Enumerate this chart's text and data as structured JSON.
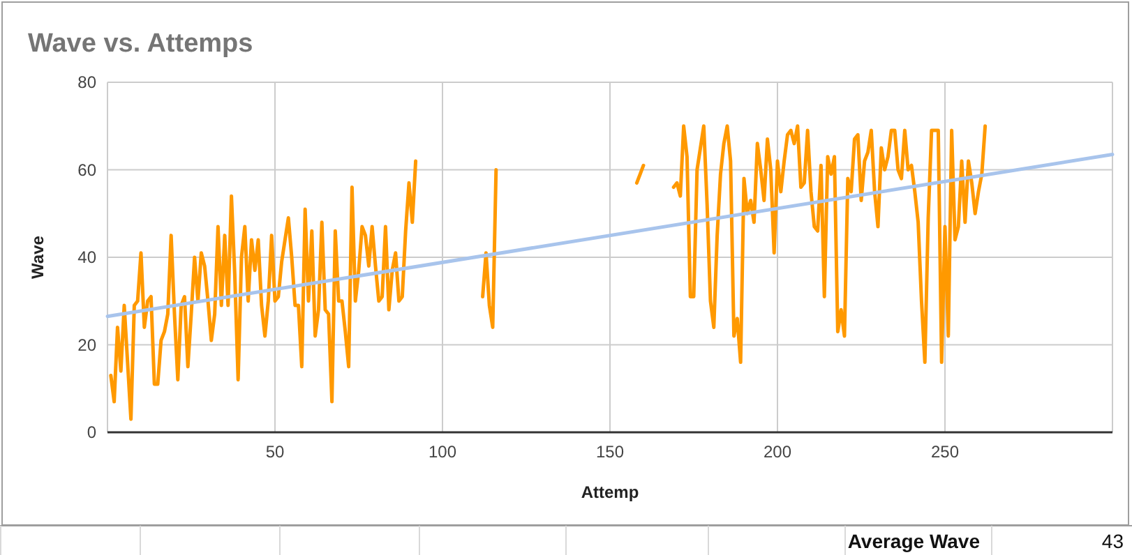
{
  "chart_data": {
    "type": "line",
    "title": "Wave vs. Attemps",
    "xlabel": "Attemp",
    "ylabel": "Wave",
    "xlim": [
      0,
      300
    ],
    "xticks": [
      50,
      100,
      150,
      200,
      250
    ],
    "ylim": [
      0,
      80
    ],
    "yticks": [
      0,
      20,
      40,
      60,
      80
    ],
    "grid": true,
    "series": [
      {
        "color": "#ff9900",
        "x": [
          1,
          2,
          3,
          4,
          5,
          6,
          7,
          8,
          9,
          10,
          11,
          12,
          13,
          14,
          15,
          16,
          17,
          18,
          19,
          20,
          21,
          22,
          23,
          24,
          25,
          26,
          27,
          28,
          29,
          30,
          31,
          32,
          33,
          34,
          35,
          36,
          37,
          38,
          39,
          40,
          41,
          42,
          43,
          44,
          45,
          46,
          47,
          48,
          49,
          50,
          51,
          52,
          53,
          54,
          55,
          56,
          57,
          58,
          59,
          60,
          61,
          62,
          63,
          64,
          65,
          66,
          67,
          68,
          69,
          70,
          71,
          72,
          73,
          74,
          75,
          76,
          77,
          78,
          79,
          80,
          81,
          82,
          83,
          84,
          85,
          86,
          87,
          88,
          89,
          90,
          91,
          92,
          100,
          112,
          113,
          114,
          115,
          116,
          165,
          169,
          170,
          171,
          172,
          173,
          174,
          175,
          176,
          177,
          178,
          179,
          180,
          181,
          182,
          183,
          184,
          185,
          186,
          187,
          188,
          189,
          190,
          191,
          192,
          193,
          194,
          195,
          196,
          197,
          198,
          199,
          200,
          201,
          202,
          203,
          204,
          205,
          206,
          207,
          208,
          209,
          210,
          211,
          212,
          213,
          214,
          215,
          216,
          217,
          218,
          219,
          220,
          221,
          222,
          223,
          224,
          225,
          226,
          227,
          228,
          229,
          230,
          231,
          232,
          233,
          234,
          235,
          236,
          237,
          238,
          239,
          240,
          241,
          242,
          243,
          244,
          245,
          246,
          247,
          248,
          249,
          250,
          251,
          252,
          253,
          254,
          255,
          256,
          257,
          258,
          259,
          260,
          261,
          262
        ],
        "values": [
          13,
          7,
          24,
          14,
          29,
          16,
          3,
          29,
          30,
          41,
          24,
          30,
          31,
          11,
          11,
          21,
          23,
          27,
          45,
          27,
          12,
          29,
          31,
          15,
          27,
          40,
          30,
          41,
          38,
          30,
          21,
          27,
          47,
          29,
          45,
          29,
          54,
          36,
          12,
          40,
          47,
          30,
          44,
          37,
          44,
          29,
          22,
          30,
          45,
          30,
          31,
          39,
          44,
          49,
          40,
          29,
          29,
          15,
          51,
          30,
          46,
          22,
          28,
          48,
          28,
          27,
          7,
          46,
          30,
          30,
          23,
          15,
          56,
          30,
          37,
          47,
          45,
          38,
          47,
          38,
          30,
          31,
          47,
          28,
          37,
          41,
          30,
          31,
          46,
          57,
          48,
          62,
          null,
          31,
          41,
          29,
          24,
          60,
          null,
          56,
          57,
          54,
          70,
          63,
          31,
          31,
          60,
          65,
          70,
          52,
          30,
          24,
          45,
          59,
          66,
          70,
          62,
          22,
          26,
          16,
          58,
          50,
          53,
          48,
          66,
          60,
          53,
          67,
          60,
          41,
          62,
          55,
          62,
          68,
          69,
          66,
          70,
          56,
          57,
          69,
          55,
          47,
          46,
          61,
          31,
          63,
          59,
          63,
          23,
          28,
          22,
          58,
          55,
          67,
          68,
          53,
          62,
          64,
          69,
          55,
          47,
          65,
          60,
          63,
          69,
          69,
          60,
          58,
          69,
          60,
          61,
          55,
          48,
          30,
          16,
          49,
          69,
          69,
          69,
          16,
          47,
          22,
          69,
          44,
          47,
          62,
          48,
          62,
          57,
          50,
          55,
          59,
          70
        ]
      },
      {
        "color": "#ff9900",
        "x": [
          158,
          159,
          160
        ],
        "values": [
          57,
          59,
          61
        ]
      },
      {
        "type": "line",
        "color": "#a8c4ec",
        "x": [
          0,
          300
        ],
        "values": [
          26.5,
          63.5
        ]
      }
    ],
    "annotations": [
      "Average Wave",
      "43"
    ]
  }
}
